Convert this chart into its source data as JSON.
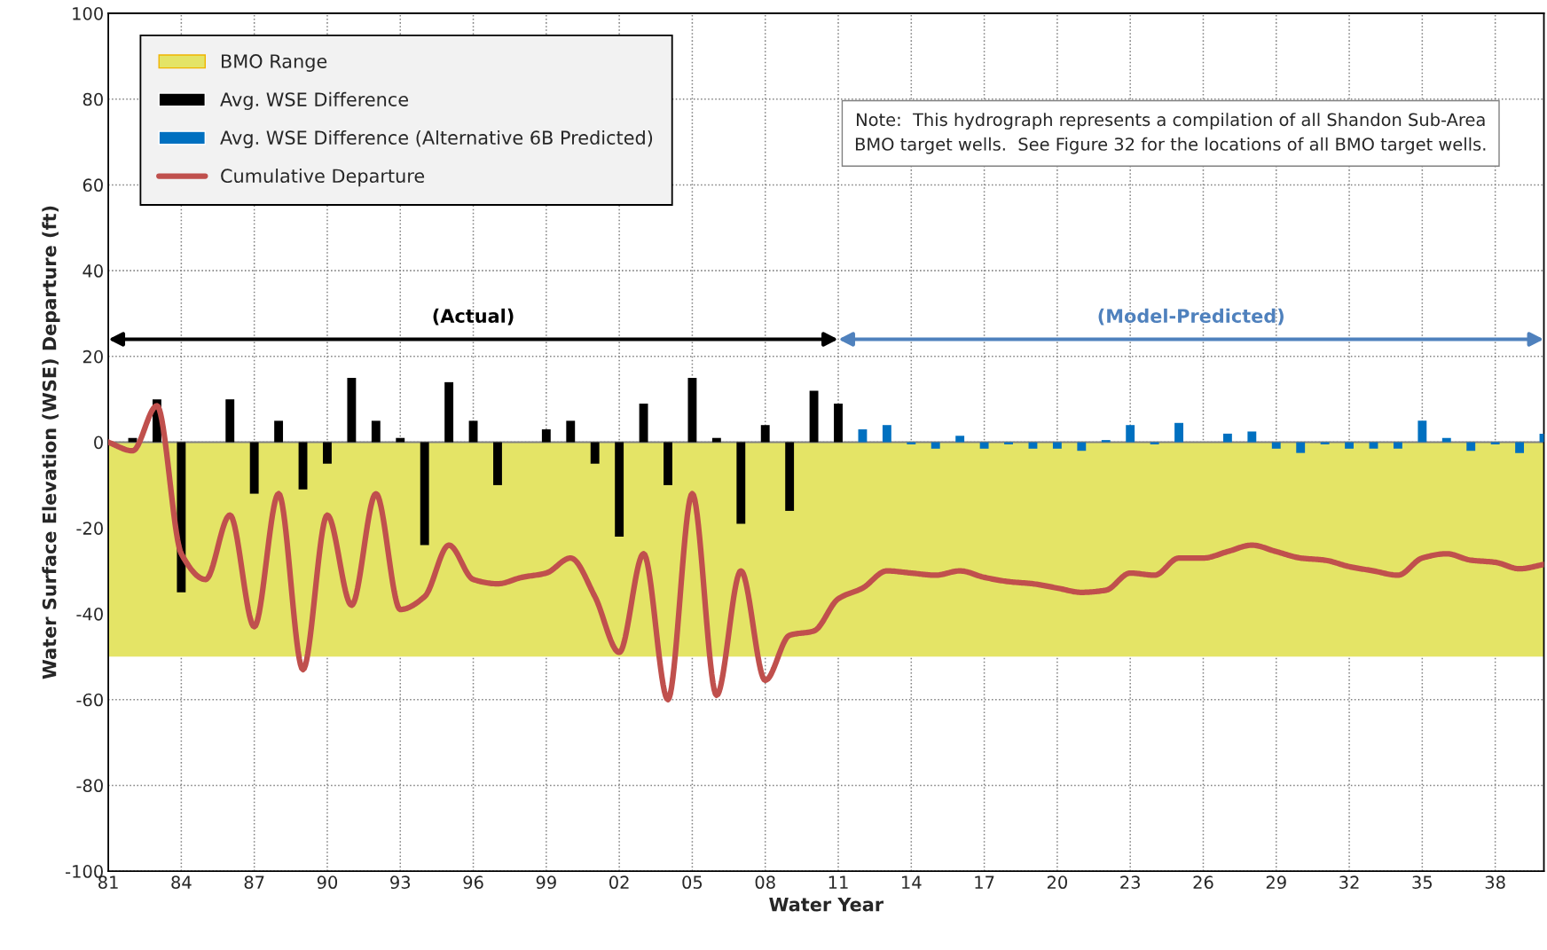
{
  "chart_data": {
    "type": "bar",
    "xlabel": "Water Year",
    "ylabel": "Water Surface Elevation (WSE) Departure (ft)",
    "x": [
      1981,
      1982,
      1983,
      1984,
      1985,
      1986,
      1987,
      1988,
      1989,
      1990,
      1991,
      1992,
      1993,
      1994,
      1995,
      1996,
      1997,
      1998,
      1999,
      2000,
      2001,
      2002,
      2003,
      2004,
      2005,
      2006,
      2007,
      2008,
      2009,
      2010,
      2011,
      2012,
      2013,
      2014,
      2015,
      2016,
      2017,
      2018,
      2019,
      2020,
      2021,
      2022,
      2023,
      2024,
      2025,
      2026,
      2027,
      2028,
      2029,
      2030,
      2031,
      2032,
      2033,
      2034,
      2035,
      2036,
      2037,
      2038,
      2039,
      2040
    ],
    "series": [
      {
        "name": "Avg. WSE Difference",
        "color": "#000000",
        "values": [
          null,
          1,
          10,
          -35,
          null,
          10,
          -12,
          5,
          -11,
          -5,
          15,
          5,
          1,
          -24,
          14,
          5,
          -10,
          null,
          3,
          5,
          -5,
          -22,
          9,
          -10,
          15,
          1,
          -19,
          4,
          -16,
          12,
          9,
          null,
          null,
          null,
          null,
          null,
          null,
          null,
          null,
          null,
          null,
          null,
          null,
          null,
          null,
          null,
          null,
          null,
          null,
          null,
          null,
          null,
          null,
          null,
          null,
          null,
          null,
          null,
          null,
          null
        ]
      },
      {
        "name": "Avg. WSE Difference (Alternative 6B Predicted)",
        "color": "#0070c0",
        "values": [
          null,
          null,
          null,
          null,
          null,
          null,
          null,
          null,
          null,
          null,
          null,
          null,
          null,
          null,
          null,
          null,
          null,
          null,
          null,
          null,
          null,
          null,
          null,
          null,
          null,
          null,
          null,
          null,
          null,
          null,
          null,
          3,
          4,
          -0.5,
          -1.5,
          1.5,
          -1.5,
          -0.5,
          -1.5,
          -1.5,
          -2,
          0.5,
          4,
          -0.5,
          4.5,
          0,
          2,
          2.5,
          -1.5,
          -2.5,
          -0.5,
          -1.5,
          -1.5,
          -1.5,
          5,
          1,
          -2,
          -0.5,
          -2.5,
          2
        ]
      },
      {
        "name": "Cumulative Departure",
        "type": "line",
        "color": "#c0504d",
        "values": [
          0,
          -2,
          8.5,
          -26,
          -32,
          -17,
          -43,
          -12,
          -53,
          -17,
          -38,
          -12,
          -39,
          -36,
          -24,
          -32,
          -33,
          -31.5,
          -30.5,
          -27,
          -36,
          -49,
          -26,
          -60,
          -12,
          -59,
          -30,
          -55.5,
          -45,
          -44,
          -36.5,
          -34,
          -30,
          -30.5,
          -31,
          -30,
          -31.5,
          -32.5,
          -33,
          -34,
          -35,
          -34.5,
          -30.5,
          -31,
          -27,
          -27,
          -25.5,
          -24,
          -25.5,
          -27,
          -27.5,
          -29,
          -30,
          -31,
          -27,
          -26,
          -27.5,
          -28,
          -29.5,
          -28.5
        ]
      }
    ],
    "xlim": [
      1981,
      2040
    ],
    "xticks": [
      {
        "value": 1981,
        "label": "81"
      },
      {
        "value": 1984,
        "label": "84"
      },
      {
        "value": 1987,
        "label": "87"
      },
      {
        "value": 1990,
        "label": "90"
      },
      {
        "value": 1993,
        "label": "93"
      },
      {
        "value": 1996,
        "label": "96"
      },
      {
        "value": 1999,
        "label": "99"
      },
      {
        "value": 2002,
        "label": "02"
      },
      {
        "value": 2005,
        "label": "05"
      },
      {
        "value": 2008,
        "label": "08"
      },
      {
        "value": 2011,
        "label": "11"
      },
      {
        "value": 2014,
        "label": "14"
      },
      {
        "value": 2017,
        "label": "17"
      },
      {
        "value": 2020,
        "label": "20"
      },
      {
        "value": 2023,
        "label": "23"
      },
      {
        "value": 2026,
        "label": "26"
      },
      {
        "value": 2029,
        "label": "29"
      },
      {
        "value": 2032,
        "label": "32"
      },
      {
        "value": 2035,
        "label": "35"
      },
      {
        "value": 2038,
        "label": "38"
      }
    ],
    "ylim": [
      -100,
      100
    ],
    "yticks": [
      -100,
      -80,
      -60,
      -40,
      -20,
      0,
      20,
      40,
      60,
      80,
      100
    ],
    "bands": [
      {
        "axis": "y",
        "from": -50,
        "to": 0,
        "label": "BMO Range",
        "color": "#e4e466"
      }
    ],
    "annotations": [
      "(Actual)",
      "(Model-Predicted)",
      "Note:  This hydrograph represents a compilation of all Shandon Sub-Area\nBMO target wells.  See Figure 32 for the locations of all BMO target wells."
    ],
    "grid": true,
    "legend": "top left"
  }
}
